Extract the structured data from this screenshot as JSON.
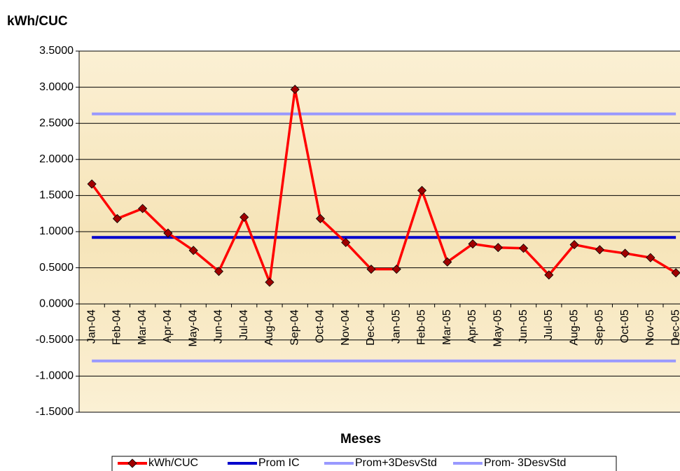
{
  "chart_data": {
    "type": "line",
    "y_label": "kWh/CUC",
    "x_label": "Meses",
    "categories": [
      "Jan-04",
      "Feb-04",
      "Mar-04",
      "Apr-04",
      "May-04",
      "Jun-04",
      "Jul-04",
      "Aug-04",
      "Sep-04",
      "Oct-04",
      "Nov-04",
      "Dec-04",
      "Jan-05",
      "Feb-05",
      "Mar-05",
      "Apr-05",
      "May-05",
      "Jun-05",
      "Jul-05",
      "Aug-05",
      "Sep-05",
      "Oct-05",
      "Nov-05",
      "Dec-05"
    ],
    "series": [
      {
        "name": "kWh/CUC",
        "color": "#ff0000",
        "marker": "diamond",
        "values": [
          1.66,
          1.18,
          1.32,
          0.98,
          0.74,
          0.45,
          1.2,
          0.3,
          2.97,
          1.18,
          0.85,
          0.48,
          0.48,
          1.57,
          0.58,
          0.83,
          0.78,
          0.77,
          0.4,
          0.82,
          0.75,
          0.7,
          0.64,
          0.43
        ]
      },
      {
        "name": "Prom IC",
        "color": "#0000cc",
        "values": [
          0.92,
          0.92,
          0.92,
          0.92,
          0.92,
          0.92,
          0.92,
          0.92,
          0.92,
          0.92,
          0.92,
          0.92,
          0.92,
          0.92,
          0.92,
          0.92,
          0.92,
          0.92,
          0.92,
          0.92,
          0.92,
          0.92,
          0.92,
          0.92
        ]
      },
      {
        "name": "Prom+3DesvStd",
        "color": "#9999ff",
        "values": [
          2.63,
          2.63,
          2.63,
          2.63,
          2.63,
          2.63,
          2.63,
          2.63,
          2.63,
          2.63,
          2.63,
          2.63,
          2.63,
          2.63,
          2.63,
          2.63,
          2.63,
          2.63,
          2.63,
          2.63,
          2.63,
          2.63,
          2.63,
          2.63
        ]
      },
      {
        "name": "Prom- 3DesvStd",
        "color": "#9999ff",
        "values": [
          -0.79,
          -0.79,
          -0.79,
          -0.79,
          -0.79,
          -0.79,
          -0.79,
          -0.79,
          -0.79,
          -0.79,
          -0.79,
          -0.79,
          -0.79,
          -0.79,
          -0.79,
          -0.79,
          -0.79,
          -0.79,
          -0.79,
          -0.79,
          -0.79,
          -0.79,
          -0.79,
          -0.79
        ]
      }
    ],
    "ylim": [
      -1.5,
      3.5
    ],
    "yticks": [
      {
        "value": -1.5,
        "label": "-1.5000"
      },
      {
        "value": -1,
        "label": "-1.0000"
      },
      {
        "value": -0.5,
        "label": "-0.5000"
      },
      {
        "value": 0,
        "label": "0.0000"
      },
      {
        "value": 0.5,
        "label": "0.5000"
      },
      {
        "value": 1,
        "label": "1.0000"
      },
      {
        "value": 1.5,
        "label": "1.5000"
      },
      {
        "value": 2,
        "label": "2.0000"
      },
      {
        "value": 2.5,
        "label": "2.5000"
      },
      {
        "value": 3,
        "label": "3.0000"
      },
      {
        "value": 3.5,
        "label": "3.5000"
      }
    ],
    "grid": true
  }
}
